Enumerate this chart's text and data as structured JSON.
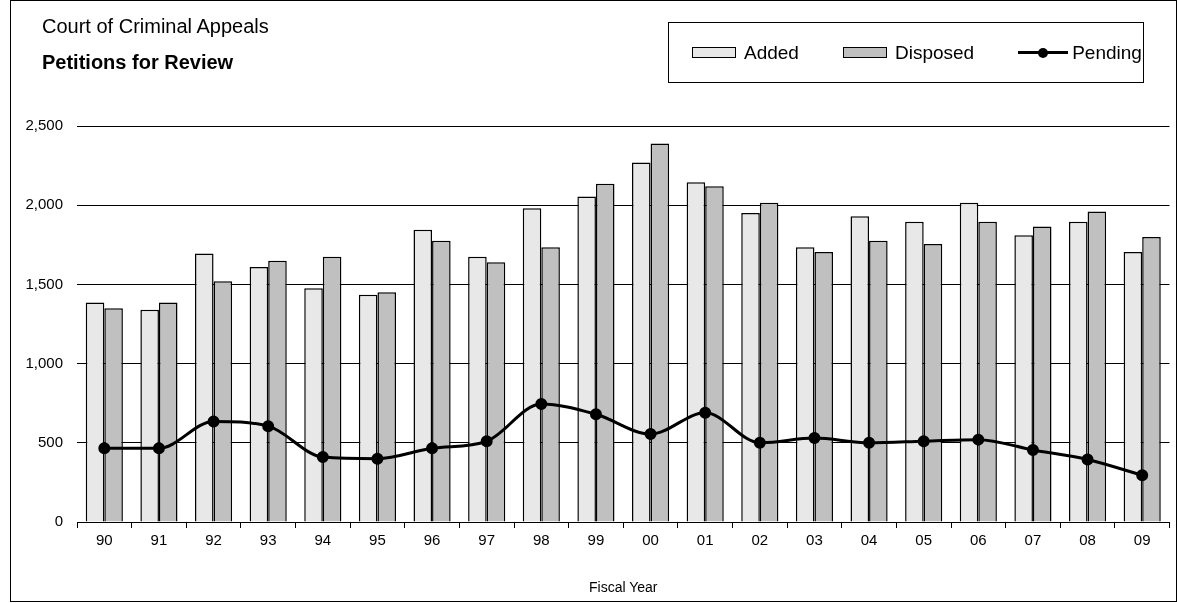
{
  "chart_data": {
    "type": "bar",
    "title": "Court of Criminal Appeals",
    "subtitle": "Petitions for Review",
    "xlabel": "Fiscal Year",
    "categories": [
      "90",
      "91",
      "92",
      "93",
      "94",
      "95",
      "96",
      "97",
      "98",
      "99",
      "00",
      "01",
      "02",
      "03",
      "04",
      "05",
      "06",
      "07",
      "08",
      "09"
    ],
    "series": [
      {
        "name": "Added",
        "color": "#e8e8e8",
        "values": [
          1385,
          1340,
          1695,
          1610,
          1475,
          1435,
          1845,
          1675,
          1980,
          2055,
          2270,
          2145,
          1950,
          1735,
          1930,
          1895,
          2015,
          1810,
          1895,
          1705
        ]
      },
      {
        "name": "Disposed",
        "color": "#c0c0c0",
        "values": [
          1350,
          1385,
          1520,
          1650,
          1675,
          1450,
          1775,
          1640,
          1735,
          2135,
          2390,
          2120,
          2015,
          1705,
          1775,
          1755,
          1895,
          1865,
          1960,
          1800
        ]
      },
      {
        "name": "Pending",
        "type": "line",
        "color": "#000000",
        "values": [
          465,
          465,
          635,
          605,
          410,
          400,
          465,
          510,
          745,
          680,
          555,
          690,
          500,
          530,
          500,
          510,
          520,
          455,
          395,
          295
        ]
      }
    ],
    "ylim": [
      0,
      2500
    ],
    "yticks": [
      0,
      500,
      {
        "value": 1000,
        "label": "1,000"
      },
      {
        "value": 1500,
        "label": "1,500"
      },
      {
        "value": 2000,
        "label": "2,000"
      },
      {
        "value": 2500,
        "label": "2,500"
      }
    ],
    "grid": "y",
    "legend": "top right",
    "marker": "circle",
    "line_style": "solid"
  }
}
